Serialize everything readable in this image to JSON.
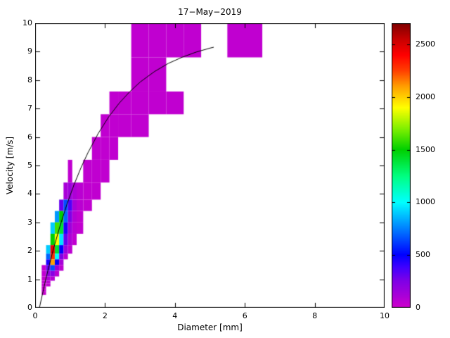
{
  "chart_data": {
    "type": "heatmap",
    "title": "17−May−2019",
    "xlabel": "Diameter [mm]",
    "ylabel": "Velocity [m/s]",
    "xlim": [
      0,
      10
    ],
    "ylim": [
      0,
      10
    ],
    "clim": [
      0,
      2700
    ],
    "x_ticks": [
      0,
      2,
      4,
      6,
      8,
      10
    ],
    "y_ticks": [
      0,
      1,
      2,
      3,
      4,
      5,
      6,
      7,
      8,
      9,
      10
    ],
    "colorbar_ticks": [
      0,
      500,
      1000,
      1500,
      2000,
      2500
    ],
    "grid": false,
    "legend": "none",
    "colormap": [
      {
        "value": 0,
        "color": "#CC00CC"
      },
      {
        "value": 250,
        "color": "#8000E6"
      },
      {
        "value": 380,
        "color": "#4000FF"
      },
      {
        "value": 500,
        "color": "#0000FF"
      },
      {
        "value": 750,
        "color": "#0080FF"
      },
      {
        "value": 1000,
        "color": "#00FFFF"
      },
      {
        "value": 1250,
        "color": "#00FF80"
      },
      {
        "value": 1500,
        "color": "#00D000"
      },
      {
        "value": 1700,
        "color": "#80F000"
      },
      {
        "value": 1900,
        "color": "#FFFF00"
      },
      {
        "value": 2100,
        "color": "#FFA000"
      },
      {
        "value": 2250,
        "color": "#FF4000"
      },
      {
        "value": 2400,
        "color": "#FF0000"
      },
      {
        "value": 2550,
        "color": "#C80000"
      },
      {
        "value": 2700,
        "color": "#800000"
      }
    ],
    "cells_format": [
      "d_min_mm",
      "d_max_mm",
      "v_min_ms",
      "v_max_ms",
      "count"
    ],
    "cells": [
      [
        2.75,
        3.25,
        8.8,
        10.4,
        40
      ],
      [
        3.25,
        3.75,
        8.8,
        10.4,
        40
      ],
      [
        3.75,
        4.25,
        8.8,
        10.4,
        40
      ],
      [
        4.25,
        4.75,
        8.8,
        10.4,
        40
      ],
      [
        5.5,
        6.5,
        8.8,
        10.4,
        40
      ],
      [
        2.75,
        3.25,
        7.6,
        8.8,
        40
      ],
      [
        3.25,
        3.75,
        7.6,
        8.8,
        40
      ],
      [
        2.125,
        2.375,
        6.8,
        7.6,
        40
      ],
      [
        2.375,
        2.75,
        6.8,
        7.6,
        40
      ],
      [
        2.75,
        3.25,
        6.8,
        7.6,
        40
      ],
      [
        3.25,
        3.75,
        6.8,
        7.6,
        40
      ],
      [
        3.75,
        4.25,
        6.8,
        7.6,
        40
      ],
      [
        1.875,
        2.125,
        6.0,
        6.8,
        40
      ],
      [
        2.125,
        2.375,
        6.0,
        6.8,
        40
      ],
      [
        2.375,
        2.75,
        6.0,
        6.8,
        40
      ],
      [
        2.75,
        3.25,
        6.0,
        6.8,
        40
      ],
      [
        1.625,
        1.875,
        5.2,
        6.0,
        40
      ],
      [
        1.875,
        2.125,
        5.2,
        6.0,
        40
      ],
      [
        2.125,
        2.375,
        5.2,
        6.0,
        40
      ],
      [
        0.937,
        1.062,
        4.4,
        5.2,
        40
      ],
      [
        1.375,
        1.625,
        4.4,
        5.2,
        40
      ],
      [
        1.625,
        1.875,
        4.4,
        5.2,
        40
      ],
      [
        1.875,
        2.125,
        4.4,
        5.2,
        40
      ],
      [
        0.812,
        0.937,
        3.8,
        4.4,
        120
      ],
      [
        0.937,
        1.062,
        3.8,
        4.4,
        150
      ],
      [
        1.062,
        1.187,
        3.8,
        4.4,
        100
      ],
      [
        1.187,
        1.375,
        3.8,
        4.4,
        60
      ],
      [
        1.375,
        1.625,
        3.8,
        4.4,
        40
      ],
      [
        1.625,
        1.875,
        3.8,
        4.4,
        40
      ],
      [
        0.687,
        0.812,
        3.4,
        3.8,
        300
      ],
      [
        0.812,
        0.937,
        3.4,
        3.8,
        650
      ],
      [
        0.937,
        1.062,
        3.4,
        3.8,
        350
      ],
      [
        1.062,
        1.187,
        3.4,
        3.8,
        120
      ],
      [
        1.187,
        1.375,
        3.4,
        3.8,
        60
      ],
      [
        1.375,
        1.625,
        3.4,
        3.8,
        40
      ],
      [
        0.562,
        0.687,
        3.0,
        3.4,
        800
      ],
      [
        0.687,
        0.812,
        3.0,
        3.4,
        1500
      ],
      [
        0.812,
        0.937,
        3.0,
        3.4,
        700
      ],
      [
        0.937,
        1.062,
        3.0,
        3.4,
        250
      ],
      [
        1.062,
        1.187,
        3.0,
        3.4,
        80
      ],
      [
        1.187,
        1.375,
        3.0,
        3.4,
        40
      ],
      [
        0.437,
        0.562,
        2.6,
        3.0,
        900
      ],
      [
        0.562,
        0.687,
        2.6,
        3.0,
        1600
      ],
      [
        0.687,
        0.812,
        2.6,
        3.0,
        1400
      ],
      [
        0.812,
        0.937,
        2.6,
        3.0,
        450
      ],
      [
        0.937,
        1.062,
        2.6,
        3.0,
        150
      ],
      [
        1.062,
        1.187,
        2.6,
        3.0,
        60
      ],
      [
        1.187,
        1.375,
        2.6,
        3.0,
        35
      ],
      [
        0.437,
        0.562,
        2.2,
        2.6,
        1500
      ],
      [
        0.562,
        0.687,
        2.2,
        2.6,
        1900
      ],
      [
        0.687,
        0.812,
        2.2,
        2.6,
        950
      ],
      [
        0.812,
        0.937,
        2.2,
        2.6,
        300
      ],
      [
        0.937,
        1.062,
        2.2,
        2.6,
        100
      ],
      [
        1.062,
        1.187,
        2.2,
        2.6,
        40
      ],
      [
        0.312,
        0.437,
        1.9,
        2.2,
        900
      ],
      [
        0.437,
        0.562,
        1.9,
        2.2,
        2450
      ],
      [
        0.562,
        0.687,
        1.9,
        2.2,
        1400
      ],
      [
        0.687,
        0.812,
        1.9,
        2.2,
        500
      ],
      [
        0.812,
        0.937,
        1.9,
        2.2,
        150
      ],
      [
        0.937,
        1.062,
        1.9,
        2.2,
        50
      ],
      [
        0.312,
        0.437,
        1.7,
        1.9,
        700
      ],
      [
        0.437,
        0.562,
        1.7,
        1.9,
        2300
      ],
      [
        0.562,
        0.687,
        1.7,
        1.9,
        1000
      ],
      [
        0.687,
        0.812,
        1.7,
        1.9,
        250
      ],
      [
        0.812,
        0.937,
        1.7,
        1.9,
        60
      ],
      [
        0.312,
        0.437,
        1.5,
        1.7,
        450
      ],
      [
        0.437,
        0.562,
        1.5,
        1.7,
        2100
      ],
      [
        0.562,
        0.687,
        1.5,
        1.7,
        500
      ],
      [
        0.687,
        0.812,
        1.5,
        1.7,
        120
      ],
      [
        0.187,
        0.312,
        1.3,
        1.5,
        40
      ],
      [
        0.312,
        0.437,
        1.3,
        1.5,
        300
      ],
      [
        0.437,
        0.562,
        1.3,
        1.5,
        650
      ],
      [
        0.562,
        0.687,
        1.3,
        1.5,
        180
      ],
      [
        0.687,
        0.812,
        1.3,
        1.5,
        50
      ],
      [
        0.187,
        0.312,
        1.1,
        1.3,
        35
      ],
      [
        0.312,
        0.437,
        1.1,
        1.3,
        200
      ],
      [
        0.437,
        0.562,
        1.1,
        1.3,
        220
      ],
      [
        0.562,
        0.687,
        1.1,
        1.3,
        60
      ],
      [
        0.187,
        0.312,
        0.95,
        1.1,
        30
      ],
      [
        0.312,
        0.437,
        0.95,
        1.1,
        100
      ],
      [
        0.437,
        0.562,
        0.95,
        1.1,
        70
      ],
      [
        0.187,
        0.312,
        0.85,
        0.95,
        28
      ],
      [
        0.312,
        0.437,
        0.85,
        0.95,
        55
      ],
      [
        0.187,
        0.312,
        0.75,
        0.85,
        25
      ],
      [
        0.312,
        0.437,
        0.75,
        0.85,
        35
      ],
      [
        0.187,
        0.312,
        0.65,
        0.75,
        22
      ],
      [
        0.187,
        0.312,
        0.55,
        0.65,
        18
      ],
      [
        0.187,
        0.312,
        0.45,
        0.55,
        15
      ]
    ],
    "fit_curve": {
      "description": "terminal velocity curve",
      "color": "#000000",
      "points": [
        [
          0.11,
          0.0
        ],
        [
          0.3,
          1.05
        ],
        [
          0.5,
          2.02
        ],
        [
          0.7,
          2.88
        ],
        [
          0.9,
          3.65
        ],
        [
          1.1,
          4.33
        ],
        [
          1.3,
          4.93
        ],
        [
          1.5,
          5.46
        ],
        [
          1.8,
          6.15
        ],
        [
          2.1,
          6.73
        ],
        [
          2.4,
          7.21
        ],
        [
          2.7,
          7.61
        ],
        [
          3.0,
          7.95
        ],
        [
          3.4,
          8.31
        ],
        [
          3.8,
          8.6
        ],
        [
          4.2,
          8.82
        ],
        [
          4.6,
          9.0
        ],
        [
          5.0,
          9.14
        ],
        [
          5.1,
          9.17
        ]
      ]
    }
  }
}
